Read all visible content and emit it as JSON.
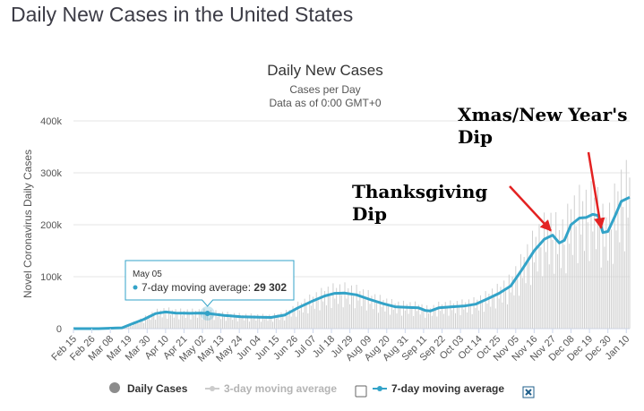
{
  "page": {
    "title": "Daily New Cases in the United States"
  },
  "chart_data": {
    "type": "bar",
    "title": "Daily New Cases",
    "subtitle": "Cases per Day",
    "subtitle2": "Data as of 0:00 GMT+0",
    "ylabel": "Novel Coronavirus Daily Cases",
    "xlabel": "",
    "ylim": [
      0,
      400000
    ],
    "yticks": [
      0,
      100000,
      200000,
      300000,
      400000
    ],
    "ytick_labels": [
      "0",
      "100k",
      "200k",
      "300k",
      "400k"
    ],
    "x_start": "2020-02-15",
    "x_end": "2021-01-12",
    "xtick_labels": [
      "Feb 15",
      "Feb 26",
      "Mar 08",
      "Mar 19",
      "Mar 30",
      "Apr 10",
      "Apr 21",
      "May 02",
      "May 13",
      "May 24",
      "Jun 04",
      "Jun 15",
      "Jun 26",
      "Jul 07",
      "Jul 18",
      "Jul 29",
      "Aug 09",
      "Aug 20",
      "Aug 31",
      "Sep 11",
      "Sep 22",
      "Oct 03",
      "Oct 14",
      "Oct 25",
      "Nov 05",
      "Nov 16",
      "Nov 27",
      "Dec 08",
      "Dec 19",
      "Dec 30",
      "Jan 10"
    ],
    "grid": true,
    "series": [
      {
        "name": "7-day moving average",
        "color": "#33a3c8",
        "points": [
          [
            "2020-02-15",
            0
          ],
          [
            "2020-03-01",
            0
          ],
          [
            "2020-03-15",
            1500
          ],
          [
            "2020-03-20",
            8000
          ],
          [
            "2020-03-28",
            18000
          ],
          [
            "2020-04-04",
            29000
          ],
          [
            "2020-04-10",
            32000
          ],
          [
            "2020-04-16",
            30000
          ],
          [
            "2020-04-25",
            29500
          ],
          [
            "2020-05-01",
            30000
          ],
          [
            "2020-05-05",
            29302
          ],
          [
            "2020-05-15",
            25500
          ],
          [
            "2020-05-25",
            23000
          ],
          [
            "2020-06-05",
            22000
          ],
          [
            "2020-06-12",
            21500
          ],
          [
            "2020-06-20",
            26000
          ],
          [
            "2020-06-28",
            40000
          ],
          [
            "2020-07-06",
            52000
          ],
          [
            "2020-07-14",
            63000
          ],
          [
            "2020-07-20",
            68000
          ],
          [
            "2020-07-26",
            68500
          ],
          [
            "2020-08-02",
            65000
          ],
          [
            "2020-08-10",
            56000
          ],
          [
            "2020-08-18",
            48000
          ],
          [
            "2020-08-25",
            42000
          ],
          [
            "2020-09-01",
            41000
          ],
          [
            "2020-09-08",
            40000
          ],
          [
            "2020-09-12",
            35000
          ],
          [
            "2020-09-15",
            34000
          ],
          [
            "2020-09-20",
            40000
          ],
          [
            "2020-09-28",
            42000
          ],
          [
            "2020-10-05",
            43500
          ],
          [
            "2020-10-12",
            47000
          ],
          [
            "2020-10-19",
            57000
          ],
          [
            "2020-10-26",
            68000
          ],
          [
            "2020-11-02",
            82000
          ],
          [
            "2020-11-09",
            115000
          ],
          [
            "2020-11-16",
            150000
          ],
          [
            "2020-11-22",
            172000
          ],
          [
            "2020-11-27",
            180000
          ],
          [
            "2020-12-01",
            165000
          ],
          [
            "2020-12-04",
            170000
          ],
          [
            "2020-12-08",
            200000
          ],
          [
            "2020-12-13",
            213000
          ],
          [
            "2020-12-17",
            214000
          ],
          [
            "2020-12-21",
            220000
          ],
          [
            "2020-12-24",
            218000
          ],
          [
            "2020-12-27",
            185000
          ],
          [
            "2020-12-30",
            187000
          ],
          [
            "2021-01-03",
            215000
          ],
          [
            "2021-01-07",
            245000
          ],
          [
            "2021-01-12",
            253000
          ]
        ]
      }
    ],
    "daily_cases_scale": [
      0.6,
      1.3,
      0.85,
      1.15,
      0.7,
      1.25,
      0.95
    ],
    "annotations": [
      {
        "text": [
          "Thanksgiving",
          "Dip"
        ],
        "target": "2020-11-27"
      },
      {
        "text": [
          "Xmas/New Year's",
          "Dip"
        ],
        "target": "2020-12-27"
      }
    ],
    "tooltip": {
      "date": "May 05",
      "label": "7-day moving average:",
      "value": "29 302",
      "target": "2020-05-05"
    },
    "legend": {
      "items": [
        {
          "label": "Daily Cases",
          "active": true
        },
        {
          "label": "3-day moving average",
          "active": false
        },
        {
          "label": "7-day moving average",
          "active": true
        }
      ]
    }
  }
}
